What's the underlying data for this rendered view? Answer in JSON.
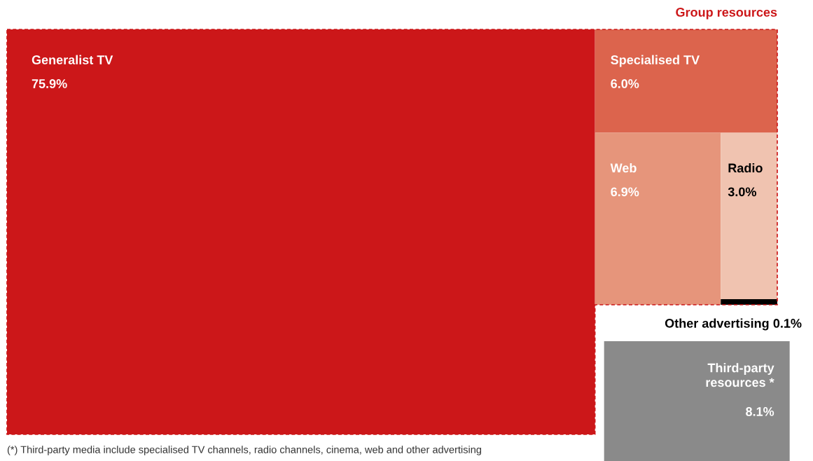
{
  "chart_data": {
    "type": "other",
    "categories": [
      "Generalist TV",
      "Specialised TV",
      "Web",
      "Radio",
      "Other advertising",
      "Third-party resources *"
    ],
    "values": [
      75.9,
      6.0,
      6.9,
      3.0,
      0.1,
      8.1
    ],
    "value_labels": [
      "75.9%",
      "6.0%",
      "6.9%",
      "3.0%",
      "0.1%",
      "8.1%"
    ],
    "colors": [
      "#cc1719",
      "#dc644d",
      "#e6957b",
      "#f0c3b0",
      "#000000",
      "#8a8a8a"
    ],
    "annotations": [
      "Group resources",
      "(*) Third-party media include specialised TV channels, radio channels, cinema, web and other advertising"
    ]
  }
}
